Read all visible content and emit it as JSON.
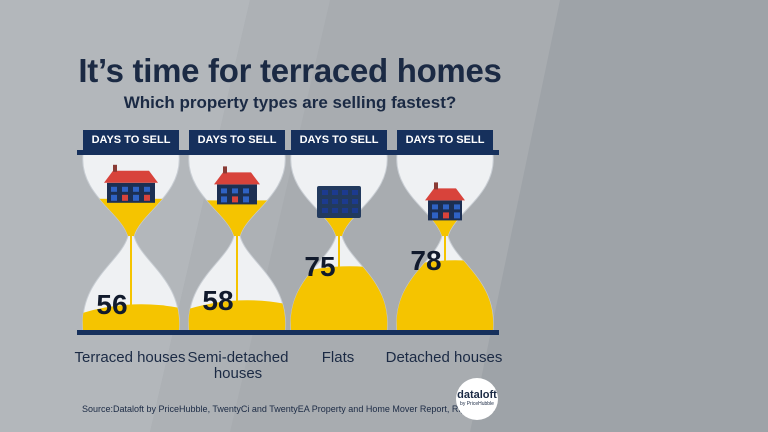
{
  "title": "It’s time for terraced homes",
  "subtitle": "Which property types are selling fastest?",
  "source": "Source:Dataloft by PriceHubble, TwentyCi and TwentyEA Property and Home Mover Report, Rightmove",
  "logo": {
    "main": "dataloft",
    "sub": "by PriceHubble"
  },
  "colors": {
    "navy": "#16305c",
    "sand": "#f5c400",
    "glass": "#eff1f3",
    "house_roof": "#d8433b"
  },
  "chart_data": {
    "type": "bar",
    "title": "It’s time for terraced homes",
    "subtitle": "Which property types are selling fastest?",
    "ylabel": "DAYS TO SELL",
    "categories": [
      "Terraced houses",
      "Semi-detached houses",
      "Flats",
      "Detached houses"
    ],
    "values": [
      56,
      58,
      75,
      78
    ],
    "tags": [
      "DAYS TO SELL",
      "DAYS TO SELL",
      "DAYS TO SELL",
      "DAYS TO SELL"
    ],
    "icons": [
      "terraced-house-icon",
      "semi-detached-house-icon",
      "flats-block-icon",
      "detached-house-icon"
    ],
    "ylim": [
      50,
      80
    ]
  }
}
